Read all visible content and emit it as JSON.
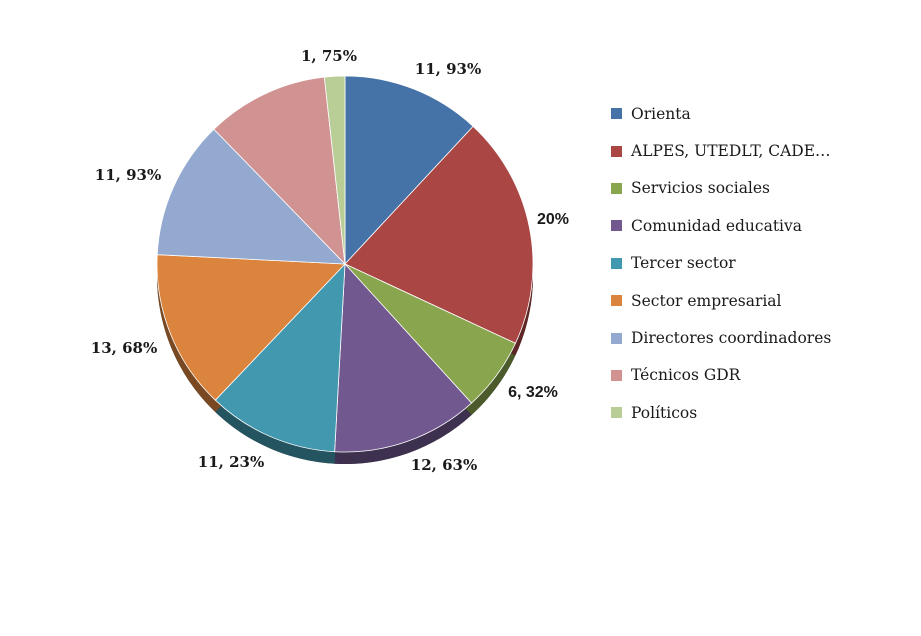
{
  "chart_data": {
    "type": "pie",
    "title": "",
    "legend_position": "right",
    "slices": [
      {
        "label": "Orienta",
        "value": 11.93,
        "value_label": "11, 93%",
        "color": "#4572A7"
      },
      {
        "label": "ALPES, UTEDLT, CADE…",
        "value": 20.0,
        "value_label": "20%",
        "color": "#AA4643"
      },
      {
        "label": "Servicios sociales",
        "value": 6.32,
        "value_label": "6, 32%",
        "color": "#89A54E"
      },
      {
        "label": "Comunidad educativa",
        "value": 12.63,
        "value_label": "12, 63%",
        "color": "#71588F"
      },
      {
        "label": "Tercer sector",
        "value": 11.23,
        "value_label": "11, 23%",
        "color": "#4198AF"
      },
      {
        "label": "Sector empresarial",
        "value": 13.68,
        "value_label": "13, 68%",
        "color": "#DB843D"
      },
      {
        "label": "Directores coordinadores",
        "value": 11.93,
        "value_label": "11, 93%",
        "color": "#93A9CF"
      },
      {
        "label": "Técnicos GDR",
        "value": 10.53,
        "value_label": "",
        "color": "#D19392"
      },
      {
        "label": "Políticos",
        "value": 1.75,
        "value_label": "1, 75%",
        "color": "#B9CD96"
      }
    ]
  }
}
